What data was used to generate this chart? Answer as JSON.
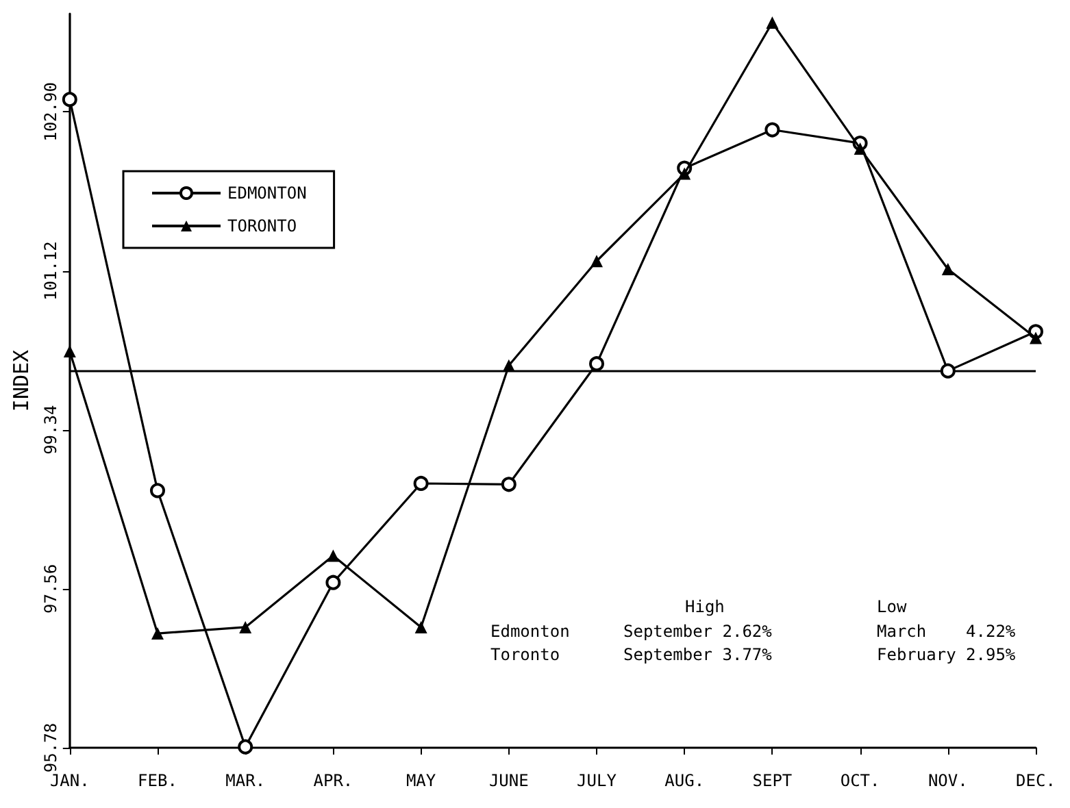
{
  "chart_data": {
    "type": "line",
    "ylabel": "INDEX",
    "categories": [
      "JAN.",
      "FEB.",
      "MAR.",
      "APR.",
      "MAY",
      "JUNE",
      "JULY",
      "AUG.",
      "SEPT",
      "OCT.",
      "NOV.",
      "DEC."
    ],
    "series": [
      {
        "name": "EDMONTON",
        "color": "#000000",
        "marker": "circle",
        "values": [
          103.04,
          98.66,
          95.79,
          97.63,
          98.74,
          98.73,
          100.08,
          102.27,
          102.7,
          102.55,
          100.0,
          100.44
        ]
      },
      {
        "name": "TORONTO",
        "color": "#000000",
        "marker": "triangle",
        "values": [
          100.22,
          97.06,
          97.13,
          97.93,
          97.13,
          100.06,
          101.23,
          102.21,
          103.9,
          102.49,
          101.14,
          100.37
        ]
      }
    ],
    "ylim": [
      95.78,
      104
    ],
    "yticks": [
      95.78,
      97.56,
      99.34,
      101.12,
      {
        "value": 102.9,
        "label": "102.90"
      }
    ],
    "ref_lines": [
      {
        "axis": "y",
        "value": 100,
        "color": "#000000"
      }
    ],
    "annotations": [
      "High",
      "Low",
      "Edmonton",
      "September 2.62%",
      "March    4.22%",
      "Toronto",
      "September 3.77%",
      "February 2.95%"
    ],
    "grid": false,
    "legend": "top left",
    "line_style": "solid"
  }
}
